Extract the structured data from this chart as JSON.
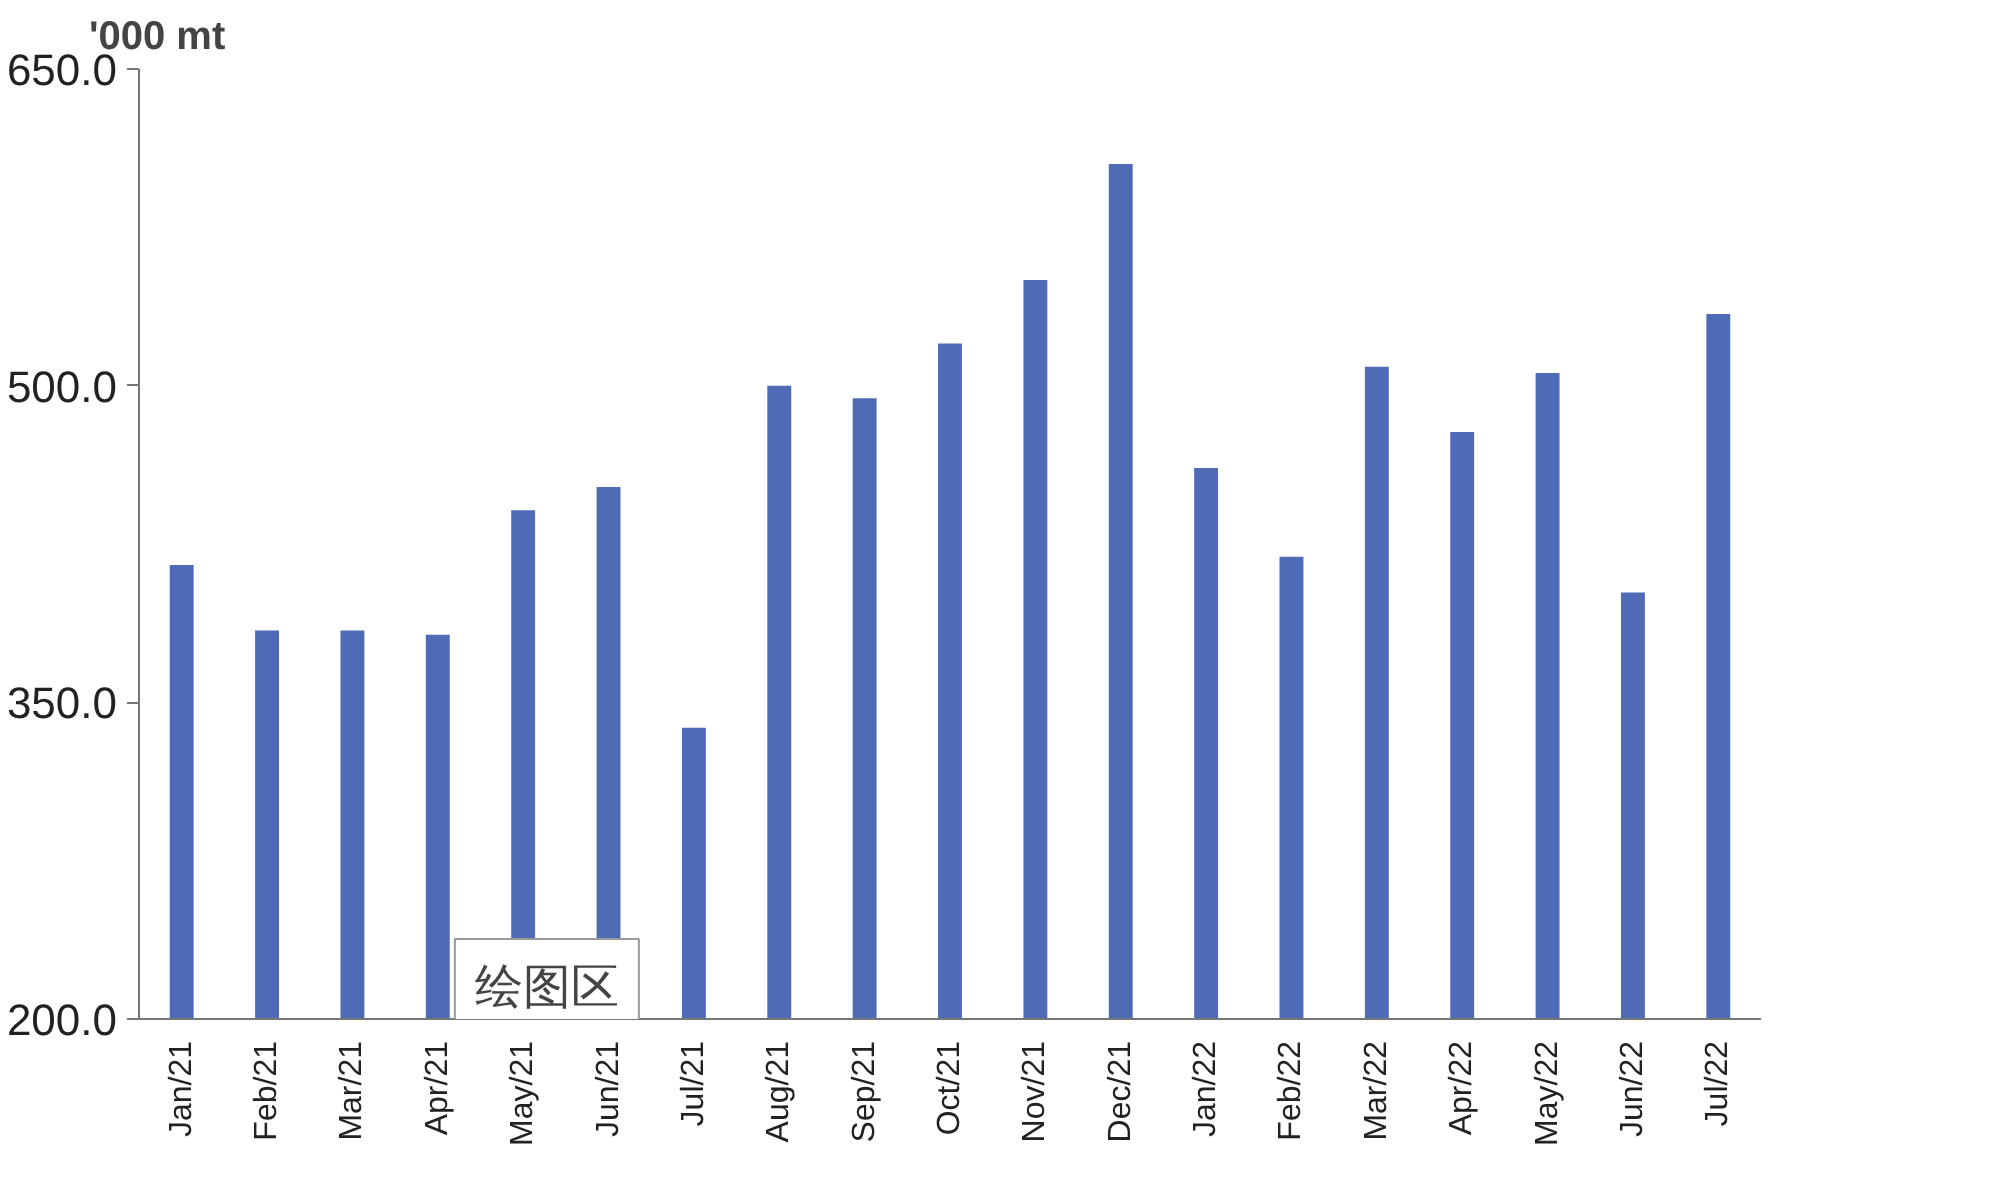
{
  "chart_data": {
    "type": "bar",
    "ylabel": "'000 mt",
    "categories": [
      "Jan/21",
      "Feb/21",
      "Mar/21",
      "Apr/21",
      "May/21",
      "Jun/21",
      "Jul/21",
      "Aug/21",
      "Sep/21",
      "Oct/21",
      "Nov/21",
      "Dec/21",
      "Jan/22",
      "Feb/22",
      "Mar/22",
      "Apr/22",
      "May/22",
      "Jun/22",
      "Jul/22"
    ],
    "values": [
      415,
      384,
      384,
      382,
      441,
      452,
      338,
      500,
      494,
      520,
      550,
      605,
      461,
      419,
      509,
      478,
      506,
      402,
      534
    ],
    "color": "#4f6bb5",
    "ylim": [
      200,
      650
    ],
    "yticks": [
      {
        "value": 200,
        "label": "200.0"
      },
      {
        "value": 350,
        "label": "350.0"
      },
      {
        "value": 500,
        "label": "500.0"
      },
      {
        "value": 650,
        "label": "650.0"
      }
    ],
    "annotations": [
      "绘图区"
    ],
    "grid": false
  }
}
